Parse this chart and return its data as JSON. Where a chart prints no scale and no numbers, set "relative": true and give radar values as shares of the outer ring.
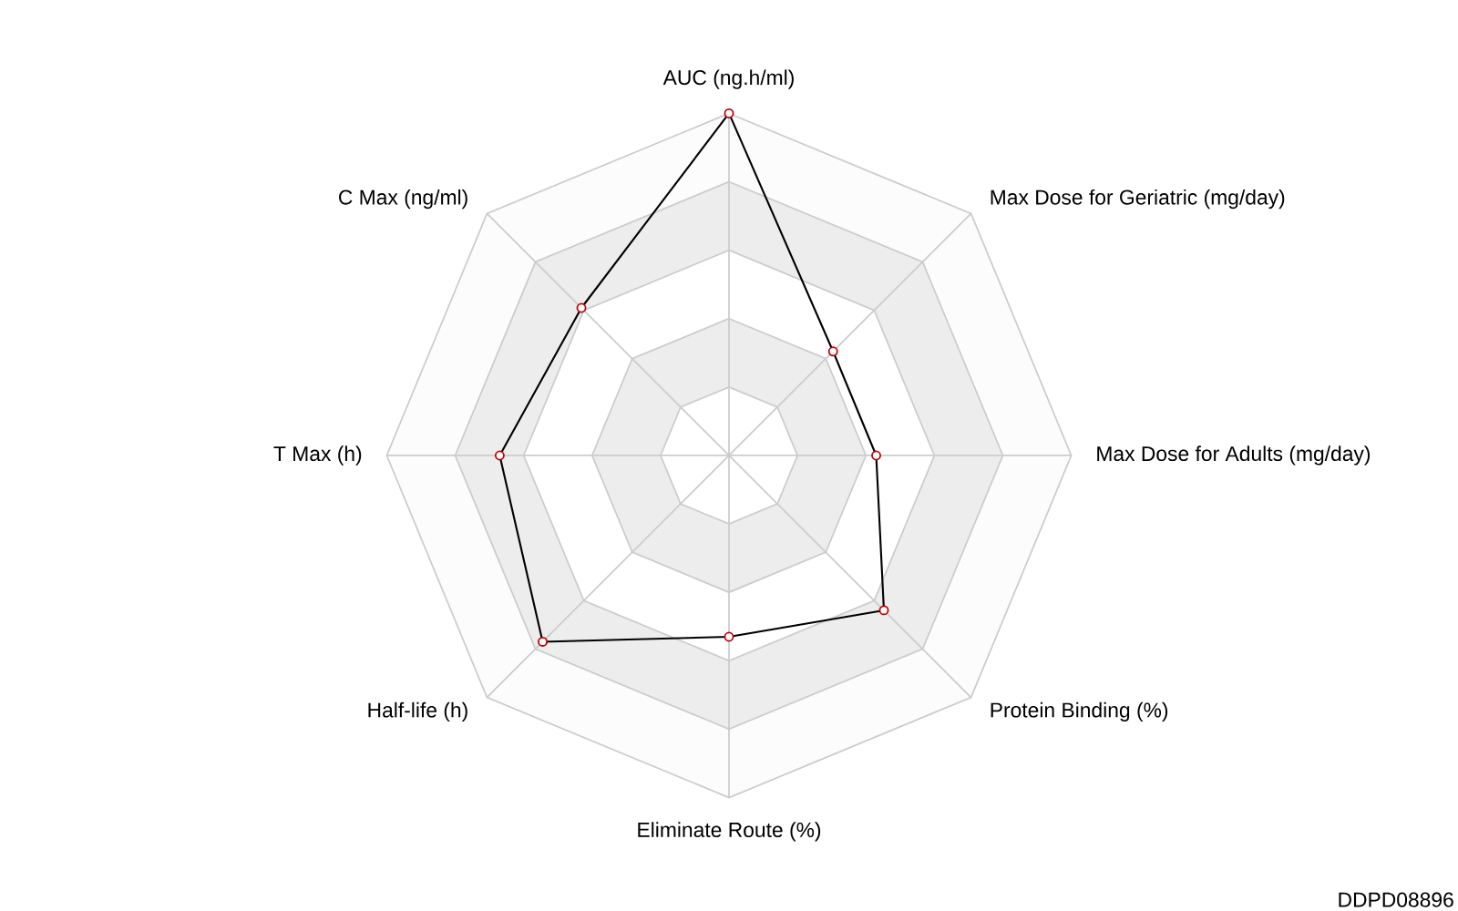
{
  "chart_data": {
    "type": "radar",
    "relative": true,
    "grid": true,
    "marker": "circle",
    "line_style": "solid",
    "categories": [
      "AUC (ng.h/ml)",
      "Max Dose for Geriatric (mg/day)",
      "Max Dose for Adults (mg/day)",
      "Protein Binding (%)",
      "Eliminate Route (%)",
      "Half-life (h)",
      "T Max (h)",
      "C Max (ng/ml)"
    ],
    "series": [
      {
        "color": "#000000",
        "values": [
          1.0,
          0.43,
          0.43,
          0.64,
          0.53,
          0.77,
          0.67,
          0.61
        ]
      }
    ],
    "annotations": [
      "DDPD08896"
    ]
  }
}
